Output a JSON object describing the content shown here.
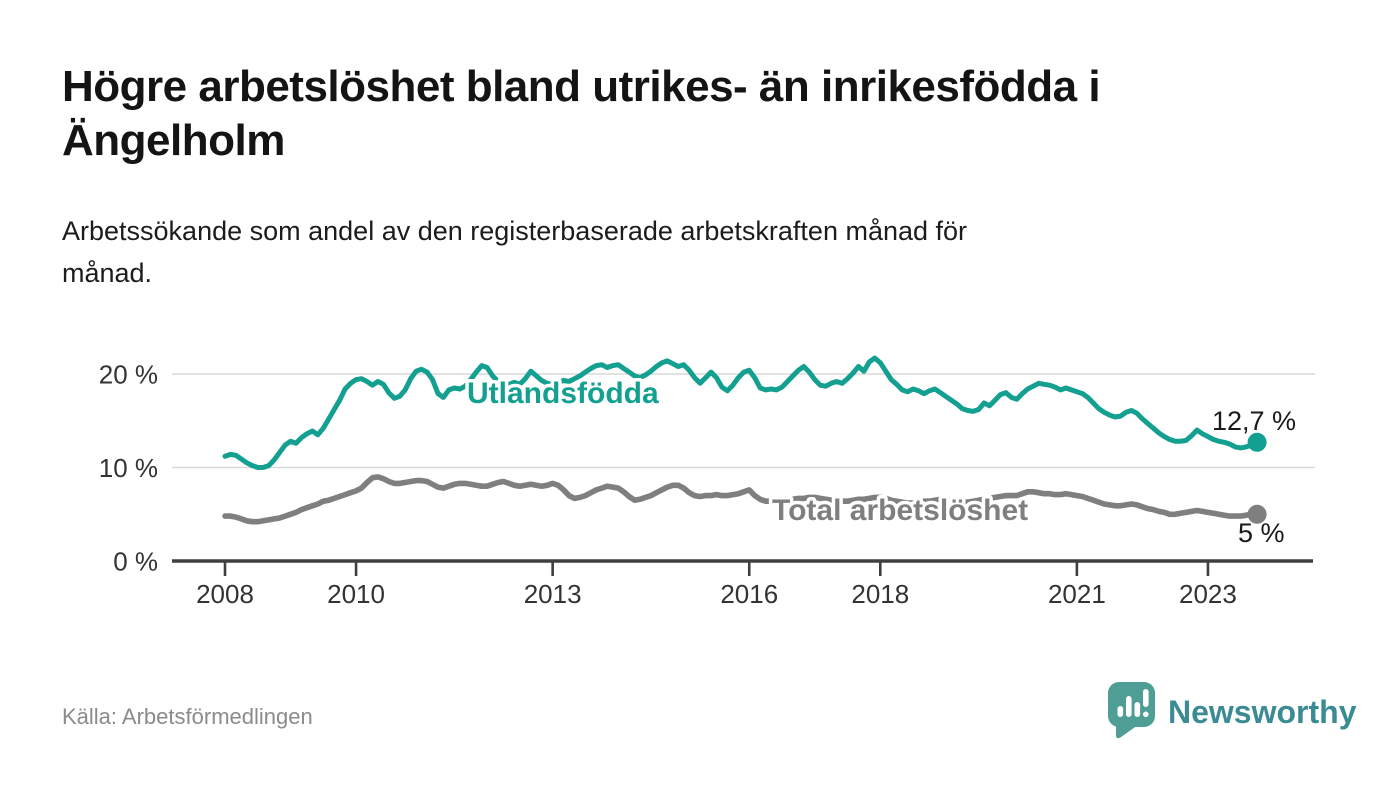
{
  "header": {
    "title": "Högre arbetslöshet bland utrikes- än inrikesfödda i Ängelholm",
    "title_line1": "Högre arbetslöshet bland utrikes- än inrikesfödda i",
    "title_line2": "Ängelholm",
    "subtitle": "Arbetssökande som andel av den registerbaserade arbetskraften månad för månad.",
    "subtitle_line1": "Arbetssökande som andel av den registerbaserade arbetskraften månad för",
    "subtitle_line2": "månad."
  },
  "footer": {
    "source": "Källa: Arbetsförmedlingen",
    "brand": "Newsworthy"
  },
  "colors": {
    "foreign_born_line": "#14a091",
    "total_line": "#7f7f7f",
    "grid": "#d9d9d9",
    "axis": "#3f3f3f",
    "brand_text": "#3a8b93",
    "brand_mark": "#4f9e96"
  },
  "chart_data": {
    "type": "line",
    "title": "Högre arbetslöshet bland utrikes- än inrikesfödda i Ängelholm",
    "subtitle": "Arbetssökande som andel av den registerbaserade arbetskraften månad för månad.",
    "x_unit": "month",
    "x_start": "2008-01",
    "x_end": "2023-10",
    "x_interval": "monthly",
    "x_ticks": [
      2008,
      2010,
      2013,
      2016,
      2018,
      2021,
      2023
    ],
    "y_ticks": [
      {
        "value": 0,
        "label": "0 %"
      },
      {
        "value": 10,
        "label": "10 %"
      },
      {
        "value": 20,
        "label": "20 %"
      }
    ],
    "ylim": [
      0,
      23.5
    ],
    "grid": "horizontal",
    "legend_position": "inline-labels",
    "series": [
      {
        "name": "Utlandsfödda",
        "color": "#14a091",
        "end_label": "12,7 %",
        "end_value": 12.7,
        "values": [
          11.2,
          11.4,
          11.3,
          10.9,
          10.5,
          10.2,
          10.0,
          10.0,
          10.2,
          10.8,
          11.6,
          12.4,
          12.8,
          12.6,
          13.2,
          13.6,
          13.9,
          13.5,
          14.2,
          15.2,
          16.2,
          17.2,
          18.4,
          19.0,
          19.4,
          19.5,
          19.2,
          18.8,
          19.2,
          18.9,
          18.0,
          17.4,
          17.6,
          18.3,
          19.5,
          20.3,
          20.5,
          20.2,
          19.4,
          17.9,
          17.5,
          18.3,
          18.5,
          18.4,
          18.7,
          19.4,
          20.2,
          20.9,
          20.7,
          19.8,
          19.2,
          18.8,
          18.9,
          19.1,
          18.9,
          19.5,
          20.3,
          19.8,
          19.3,
          19.0,
          18.9,
          19.1,
          19.3,
          19.2,
          19.5,
          19.8,
          20.2,
          20.6,
          20.9,
          21.0,
          20.7,
          20.9,
          21.0,
          20.6,
          20.2,
          19.8,
          19.6,
          19.9,
          20.3,
          20.8,
          21.2,
          21.4,
          21.1,
          20.8,
          21.0,
          20.4,
          19.6,
          19.0,
          19.6,
          20.2,
          19.6,
          18.6,
          18.2,
          18.8,
          19.6,
          20.2,
          20.4,
          19.6,
          18.5,
          18.3,
          18.4,
          18.3,
          18.6,
          19.2,
          19.8,
          20.4,
          20.8,
          20.2,
          19.4,
          18.8,
          18.7,
          19.0,
          19.2,
          19.0,
          19.5,
          20.1,
          20.8,
          20.3,
          21.3,
          21.7,
          21.2,
          20.3,
          19.4,
          18.9,
          18.3,
          18.1,
          18.4,
          18.2,
          17.9,
          18.2,
          18.4,
          18.0,
          17.6,
          17.2,
          16.8,
          16.3,
          16.1,
          16.0,
          16.2,
          16.9,
          16.6,
          17.2,
          17.8,
          18.0,
          17.5,
          17.3,
          17.9,
          18.4,
          18.7,
          19.0,
          18.9,
          18.8,
          18.6,
          18.3,
          18.5,
          18.3,
          18.1,
          17.9,
          17.5,
          16.9,
          16.3,
          15.9,
          15.6,
          15.4,
          15.5,
          15.9,
          16.1,
          15.8,
          15.2,
          14.7,
          14.2,
          13.7,
          13.3,
          13.0,
          12.8,
          12.8,
          12.9,
          13.4,
          14.0,
          13.6,
          13.3,
          13.0,
          12.8,
          12.7,
          12.5,
          12.2,
          12.1,
          12.2,
          12.4,
          12.7
        ]
      },
      {
        "name": "Total arbetslöshet",
        "color": "#7f7f7f",
        "end_label": "5 %",
        "end_value": 5.0,
        "values": [
          4.8,
          4.8,
          4.7,
          4.5,
          4.3,
          4.2,
          4.2,
          4.3,
          4.4,
          4.5,
          4.6,
          4.8,
          5.0,
          5.2,
          5.5,
          5.7,
          5.9,
          6.1,
          6.4,
          6.5,
          6.7,
          6.9,
          7.1,
          7.3,
          7.5,
          7.8,
          8.4,
          8.9,
          9.0,
          8.8,
          8.5,
          8.3,
          8.3,
          8.4,
          8.5,
          8.6,
          8.6,
          8.5,
          8.2,
          7.9,
          7.8,
          8.0,
          8.2,
          8.3,
          8.3,
          8.2,
          8.1,
          8.0,
          8.0,
          8.2,
          8.4,
          8.5,
          8.3,
          8.1,
          8.0,
          8.1,
          8.2,
          8.1,
          8.0,
          8.1,
          8.3,
          8.1,
          7.6,
          7.0,
          6.7,
          6.8,
          7.0,
          7.3,
          7.6,
          7.8,
          8.0,
          7.9,
          7.8,
          7.4,
          6.9,
          6.5,
          6.6,
          6.8,
          7.0,
          7.3,
          7.6,
          7.9,
          8.1,
          8.1,
          7.8,
          7.3,
          7.0,
          6.9,
          7.0,
          7.0,
          7.1,
          7.0,
          7.0,
          7.1,
          7.2,
          7.4,
          7.6,
          7.0,
          6.6,
          6.4,
          6.4,
          6.5,
          6.5,
          6.6,
          6.6,
          6.7,
          6.7,
          6.8,
          6.8,
          6.7,
          6.6,
          6.5,
          6.5,
          6.4,
          6.4,
          6.5,
          6.6,
          6.6,
          6.7,
          6.8,
          6.8,
          6.7,
          6.5,
          6.4,
          6.3,
          6.2,
          6.2,
          6.3,
          6.4,
          6.4,
          6.5,
          6.6,
          6.6,
          6.5,
          6.4,
          6.3,
          6.3,
          6.4,
          6.5,
          6.6,
          6.7,
          6.8,
          6.9,
          7.0,
          7.0,
          7.0,
          7.2,
          7.4,
          7.4,
          7.3,
          7.2,
          7.2,
          7.1,
          7.1,
          7.2,
          7.1,
          7.0,
          6.9,
          6.7,
          6.5,
          6.3,
          6.1,
          6.0,
          5.9,
          5.9,
          6.0,
          6.1,
          6.0,
          5.8,
          5.6,
          5.5,
          5.3,
          5.2,
          5.0,
          5.0,
          5.1,
          5.2,
          5.3,
          5.4,
          5.3,
          5.2,
          5.1,
          5.0,
          4.9,
          4.8,
          4.8,
          4.8,
          4.9,
          5.0,
          5.0
        ]
      }
    ]
  }
}
